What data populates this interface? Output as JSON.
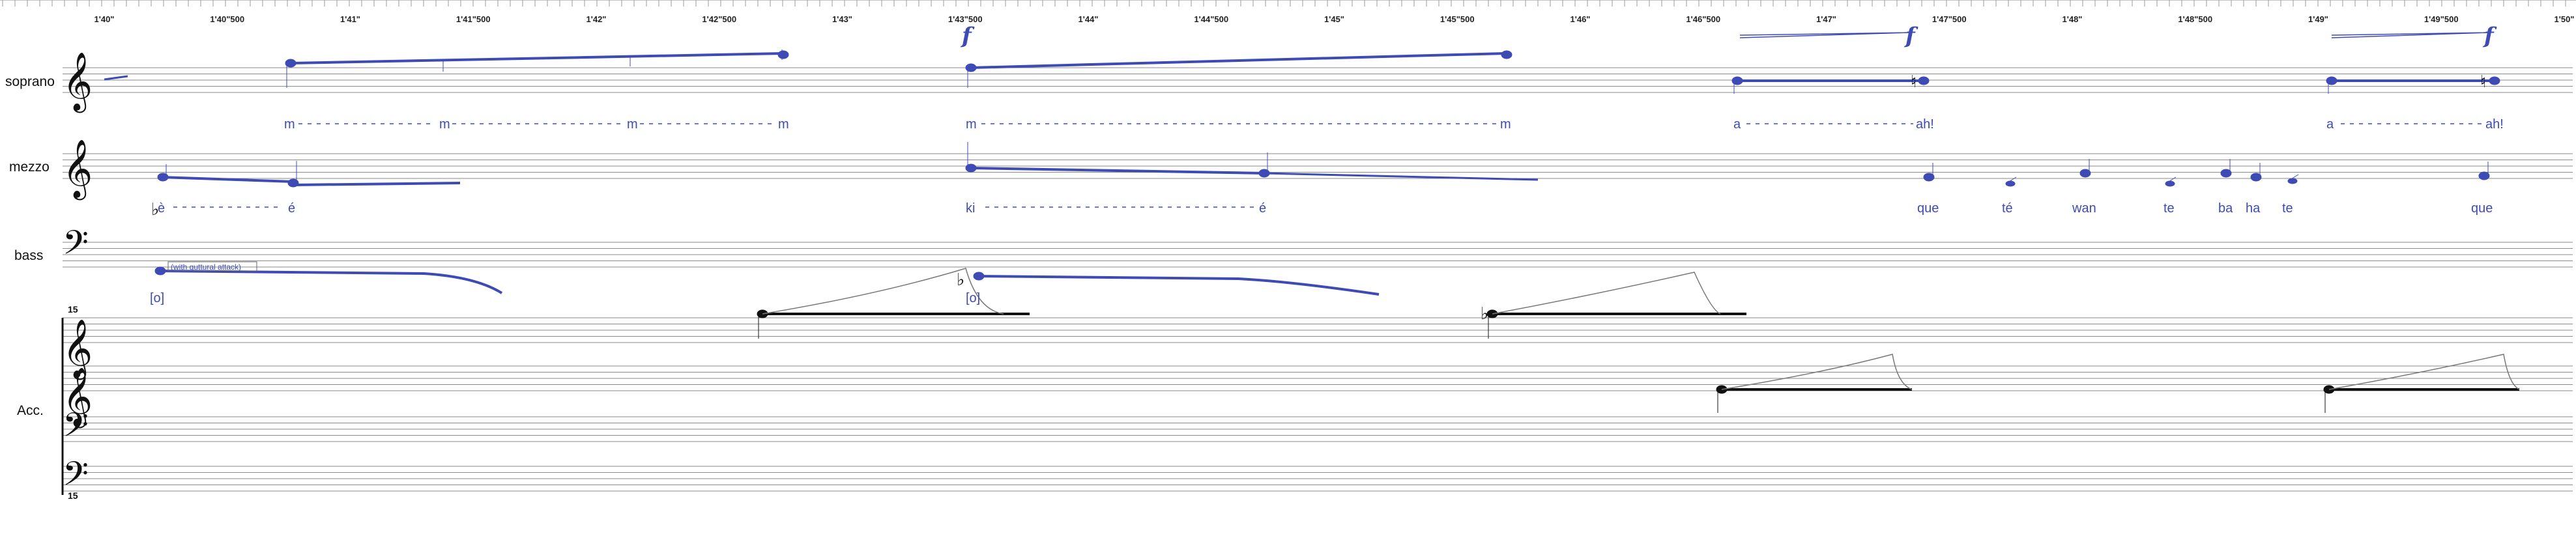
{
  "timeline": {
    "labels": [
      "1'40\"",
      "1'40\"500",
      "1'41\"",
      "1'41\"500",
      "1'42\"",
      "1'42\"500",
      "1'43\"",
      "1'43\"500",
      "1'44\"",
      "1'44\"500",
      "1'45\"",
      "1'45\"500",
      "1'46\"",
      "1'46\"500",
      "1'47\"",
      "1'47\"500",
      "1'48\"",
      "1'48\"500",
      "1'49\"",
      "1'49\"500",
      "1'50\""
    ]
  },
  "staves": {
    "soprano": {
      "label": "soprano"
    },
    "mezzo": {
      "label": "mezzo"
    },
    "bass": {
      "label": "bass"
    },
    "accordion": {
      "label": "Acc.",
      "octave_top": "15",
      "octave_bottom": "15"
    }
  },
  "dynamics": [
    "f",
    "f",
    "f"
  ],
  "lyrics": {
    "soprano": [
      "m",
      "m",
      "m",
      "m",
      "m",
      "m",
      "a",
      "ah!",
      "a",
      "ah!"
    ],
    "mezzo": [
      "è",
      "é",
      "ki",
      "é",
      "que",
      "té",
      "wan",
      "te",
      "ba",
      "ha",
      "te",
      "que"
    ],
    "bass": [
      "[o]",
      "[o]"
    ]
  },
  "annotations": {
    "bass_attack": "(with guttural attack)"
  },
  "colors": {
    "voice": "#3f4bb5",
    "staff": "#888888",
    "ink": "#111111"
  }
}
